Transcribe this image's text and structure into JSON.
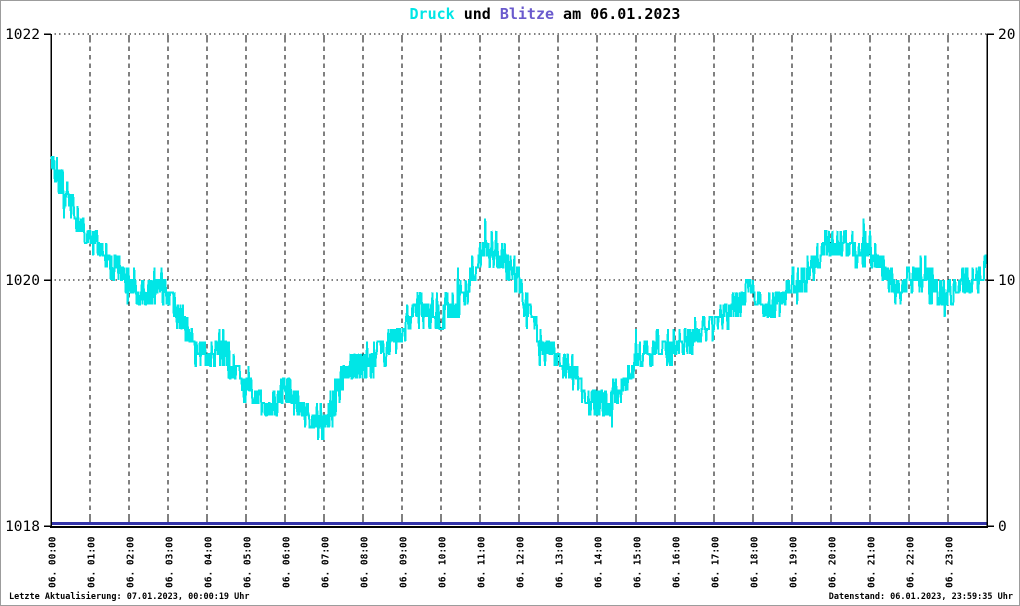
{
  "title": {
    "part_druck": "Druck",
    "part_und": " und ",
    "part_blitze": "Blitze",
    "part_rest": " am 06.01.2023"
  },
  "footer": {
    "left": "Letzte Aktualisierung: 07.01.2023, 00:00:19 Uhr",
    "right": "Datenstand: 06.01.2023, 23:59:35 Uhr"
  },
  "colors": {
    "druck": "#00E6E6",
    "blitze_title": "#6A5ACD",
    "blitze_line": "#3333AA",
    "axis": "#000000",
    "background": "#FFFFFF",
    "frame_border": "#9C9C9C"
  },
  "chart_data": {
    "type": "line",
    "title": "Druck und Blitze am 06.01.2023",
    "grid": "on",
    "legend": "none",
    "x_axis": {
      "range_hours": [
        0,
        24
      ],
      "gridline_every_hours": 1,
      "tick_labels": [
        "06. 00:00",
        "06. 01:00",
        "06. 02:00",
        "06. 03:00",
        "06. 04:00",
        "06. 05:00",
        "06. 06:00",
        "06. 07:00",
        "06. 08:00",
        "06. 09:00",
        "06. 10:00",
        "06. 11:00",
        "06. 12:00",
        "06. 13:00",
        "06. 14:00",
        "06. 15:00",
        "06. 16:00",
        "06. 17:00",
        "06. 18:00",
        "06. 19:00",
        "06. 20:00",
        "06. 21:00",
        "06. 22:00",
        "06. 23:00"
      ]
    },
    "y_left": {
      "range": [
        1018,
        1022
      ],
      "ticks": [
        {
          "value": 1018,
          "label": "1018"
        },
        {
          "value": 1020,
          "label": "1020"
        },
        {
          "value": 1022,
          "label": "1022"
        }
      ],
      "dotted_gridline_values": [
        1020,
        1022
      ]
    },
    "y_right": {
      "range": [
        0,
        20
      ],
      "ticks": [
        {
          "value": 0,
          "label": "0"
        },
        {
          "value": 10,
          "label": "10"
        },
        {
          "value": 20,
          "label": "20"
        }
      ]
    },
    "series": [
      {
        "name": "Druck",
        "axis": "left",
        "color": "#00E6E6",
        "line_width": 2,
        "style": "noisy-quantized-line",
        "sampling_minutes": 1,
        "quantize_hpa": 0.1,
        "noise_amplitude_hpa": 0.13,
        "spike_probability": 0.05,
        "spike_extra_hpa": 0.12,
        "noise_seed": 42,
        "keypoints_hour_hpa": [
          [
            0.0,
            1021.02
          ],
          [
            0.2,
            1020.85
          ],
          [
            0.5,
            1020.62
          ],
          [
            0.8,
            1020.45
          ],
          [
            1.0,
            1020.32
          ],
          [
            1.3,
            1020.28
          ],
          [
            1.6,
            1020.1
          ],
          [
            2.0,
            1020.0
          ],
          [
            2.4,
            1019.88
          ],
          [
            2.8,
            1019.93
          ],
          [
            3.05,
            1019.9
          ],
          [
            3.3,
            1019.72
          ],
          [
            3.6,
            1019.5
          ],
          [
            4.0,
            1019.38
          ],
          [
            4.4,
            1019.45
          ],
          [
            4.7,
            1019.25
          ],
          [
            5.0,
            1019.15
          ],
          [
            5.4,
            1019.02
          ],
          [
            5.7,
            1018.98
          ],
          [
            6.0,
            1019.1
          ],
          [
            6.3,
            1019.0
          ],
          [
            6.6,
            1018.92
          ],
          [
            6.95,
            1018.8
          ],
          [
            7.2,
            1018.98
          ],
          [
            7.5,
            1019.2
          ],
          [
            8.0,
            1019.33
          ],
          [
            8.5,
            1019.42
          ],
          [
            9.0,
            1019.58
          ],
          [
            9.3,
            1019.72
          ],
          [
            9.7,
            1019.75
          ],
          [
            10.0,
            1019.7
          ],
          [
            10.3,
            1019.75
          ],
          [
            10.7,
            1019.95
          ],
          [
            11.0,
            1020.22
          ],
          [
            11.3,
            1020.32
          ],
          [
            11.6,
            1020.15
          ],
          [
            12.0,
            1020.0
          ],
          [
            12.3,
            1019.7
          ],
          [
            12.6,
            1019.45
          ],
          [
            13.0,
            1019.4
          ],
          [
            13.4,
            1019.25
          ],
          [
            13.8,
            1019.05
          ],
          [
            14.2,
            1018.98
          ],
          [
            14.6,
            1019.1
          ],
          [
            15.0,
            1019.35
          ],
          [
            15.5,
            1019.45
          ],
          [
            16.0,
            1019.45
          ],
          [
            16.5,
            1019.55
          ],
          [
            17.0,
            1019.62
          ],
          [
            17.5,
            1019.78
          ],
          [
            18.0,
            1019.9
          ],
          [
            18.3,
            1019.78
          ],
          [
            18.7,
            1019.85
          ],
          [
            19.0,
            1019.95
          ],
          [
            19.5,
            1020.08
          ],
          [
            19.9,
            1020.28
          ],
          [
            20.3,
            1020.3
          ],
          [
            20.7,
            1020.22
          ],
          [
            21.0,
            1020.28
          ],
          [
            21.3,
            1020.12
          ],
          [
            21.7,
            1019.95
          ],
          [
            22.0,
            1020.0
          ],
          [
            22.3,
            1020.05
          ],
          [
            22.7,
            1019.9
          ],
          [
            23.0,
            1019.88
          ],
          [
            23.4,
            1019.95
          ],
          [
            23.7,
            1019.98
          ],
          [
            24.0,
            1020.15
          ]
        ]
      },
      {
        "name": "Blitze",
        "axis": "right",
        "color": "#3333AA",
        "line_width": 3,
        "style": "line",
        "keypoints_hour_value": [
          [
            0,
            0
          ],
          [
            24,
            0
          ]
        ]
      }
    ]
  }
}
